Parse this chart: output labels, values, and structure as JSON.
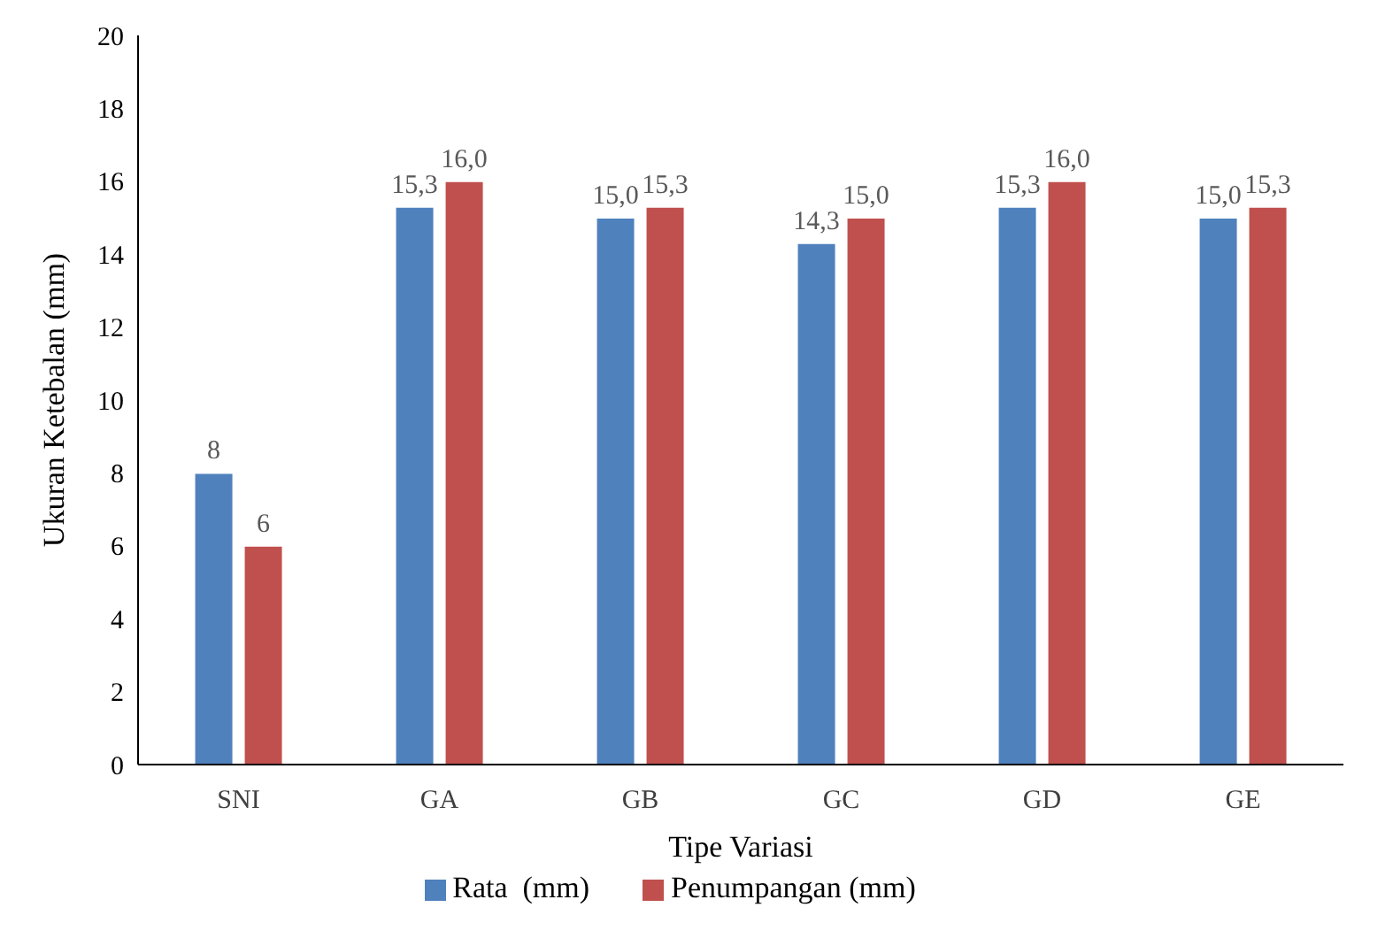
{
  "chart_data": {
    "type": "bar",
    "xlabel": "Tipe Variasi",
    "ylabel": "Ukuran Ketebalan (mm)",
    "categories": [
      "SNI",
      "GA",
      "GB",
      "GC",
      "GD",
      "GE"
    ],
    "series": [
      {
        "name": "Rata  (mm)",
        "color": "#4f81bd",
        "values": [
          8,
          15.3,
          15,
          14.3,
          15.3,
          15
        ],
        "value_labels": [
          "8",
          "15,3",
          "15,0",
          "14,3",
          "15,3",
          "15,0"
        ]
      },
      {
        "name": "Penumpangan (mm)",
        "color": "#c0504d",
        "values": [
          6,
          16,
          15.3,
          15,
          16,
          15.3
        ],
        "value_labels": [
          "6",
          "16,0",
          "15,3",
          "15,0",
          "16,0",
          "15,3"
        ]
      }
    ],
    "ylim": [
      0,
      20
    ],
    "yticks": [
      0,
      2,
      4,
      6,
      8,
      10,
      12,
      14,
      16,
      18,
      20
    ],
    "grid": false,
    "legend": "bottom"
  }
}
